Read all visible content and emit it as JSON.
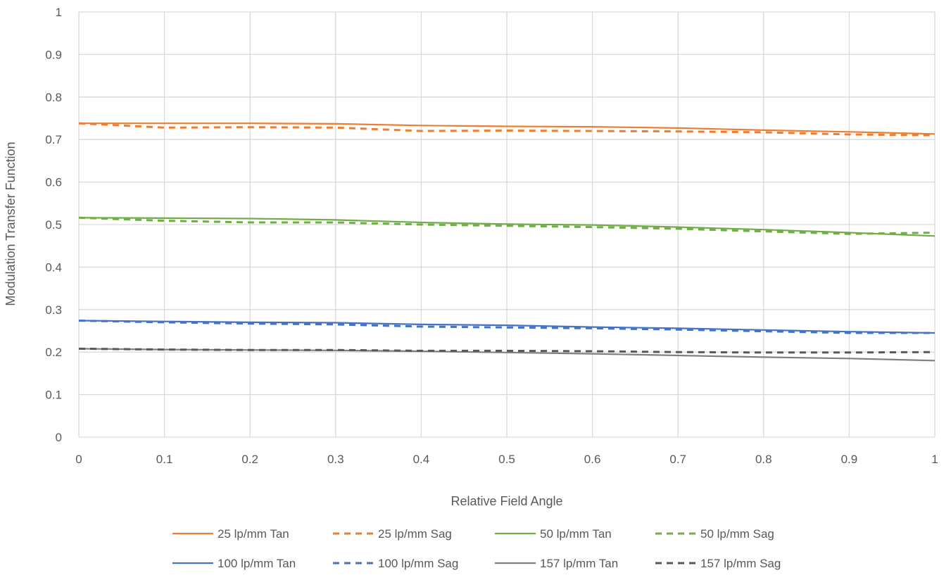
{
  "chart_data": {
    "type": "line",
    "xlabel": "Relative Field Angle",
    "ylabel": "Modulation Transfer Function",
    "xlim": [
      0,
      1
    ],
    "ylim": [
      0,
      1
    ],
    "x_ticks": [
      "0",
      "0.1",
      "0.2",
      "0.3",
      "0.4",
      "0.5",
      "0.6",
      "0.7",
      "0.8",
      "0.9",
      "1"
    ],
    "y_ticks": [
      "0",
      "0.1",
      "0.2",
      "0.3",
      "0.4",
      "0.5",
      "0.6",
      "0.7",
      "0.8",
      "0.9",
      "1"
    ],
    "grid": true,
    "legend_position": "bottom",
    "x": [
      0,
      0.1,
      0.2,
      0.3,
      0.4,
      0.5,
      0.6,
      0.7,
      0.8,
      0.9,
      1
    ],
    "series": [
      {
        "name": "25 lp/mm Tan",
        "color": "#ED7D31",
        "style": "solid",
        "values": [
          0.738,
          0.738,
          0.738,
          0.737,
          0.733,
          0.731,
          0.73,
          0.727,
          0.722,
          0.718,
          0.713
        ]
      },
      {
        "name": "25 lp/mm Sag",
        "color": "#ED7D31",
        "style": "dashed",
        "values": [
          0.738,
          0.728,
          0.729,
          0.728,
          0.72,
          0.721,
          0.72,
          0.719,
          0.717,
          0.712,
          0.71
        ]
      },
      {
        "name": "50 lp/mm Tan",
        "color": "#70AD47",
        "style": "solid",
        "values": [
          0.516,
          0.515,
          0.514,
          0.511,
          0.505,
          0.501,
          0.499,
          0.494,
          0.488,
          0.481,
          0.473
        ]
      },
      {
        "name": "50 lp/mm Sag",
        "color": "#70AD47",
        "style": "dashed",
        "values": [
          0.516,
          0.509,
          0.505,
          0.505,
          0.5,
          0.497,
          0.494,
          0.49,
          0.484,
          0.478,
          0.481
        ]
      },
      {
        "name": "100 lp/mm Tan",
        "color": "#4472C4",
        "style": "solid",
        "values": [
          0.274,
          0.272,
          0.27,
          0.269,
          0.265,
          0.263,
          0.259,
          0.256,
          0.252,
          0.248,
          0.245
        ]
      },
      {
        "name": "100 lp/mm Sag",
        "color": "#4472C4",
        "style": "dashed",
        "values": [
          0.274,
          0.27,
          0.267,
          0.265,
          0.26,
          0.258,
          0.256,
          0.253,
          0.249,
          0.245,
          0.245
        ]
      },
      {
        "name": "157 lp/mm Tan",
        "color": "#7F7F7F",
        "style": "solid",
        "values": [
          0.208,
          0.206,
          0.205,
          0.204,
          0.202,
          0.199,
          0.196,
          0.192,
          0.188,
          0.185,
          0.18
        ]
      },
      {
        "name": "157 lp/mm Sag",
        "color": "#595959",
        "style": "dashed",
        "values": [
          0.208,
          0.206,
          0.205,
          0.205,
          0.203,
          0.203,
          0.202,
          0.2,
          0.199,
          0.199,
          0.2
        ]
      }
    ]
  }
}
